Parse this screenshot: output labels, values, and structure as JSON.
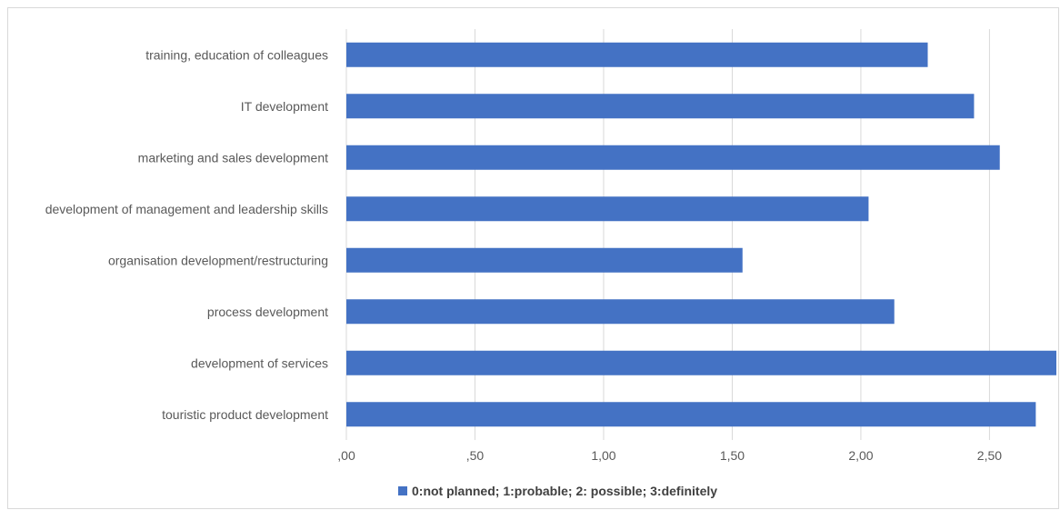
{
  "chart_data": {
    "type": "bar",
    "orientation": "horizontal",
    "title": "",
    "xlabel": "",
    "ylabel": "",
    "categories": [
      "touristic product development",
      "development of services",
      "process development",
      "organisation development/restructuring",
      "development of management and leadership skills",
      "marketing and sales development",
      "IT development",
      "training, education of colleagues"
    ],
    "series": [
      {
        "name": "0:not planned; 1:probable; 2: possible; 3:definitely",
        "values": [
          2.68,
          2.76,
          2.13,
          1.54,
          2.03,
          2.54,
          2.44,
          2.26
        ],
        "color": "#4472c4"
      }
    ],
    "xlim": [
      0,
      2.76
    ],
    "x_ticks": [
      0,
      0.5,
      1.0,
      1.5,
      2.0,
      2.5
    ],
    "x_tick_labels": [
      ",00",
      ",50",
      "1,00",
      "1,50",
      "2,00",
      "2,50"
    ],
    "grid": true,
    "legend": "bottom"
  }
}
